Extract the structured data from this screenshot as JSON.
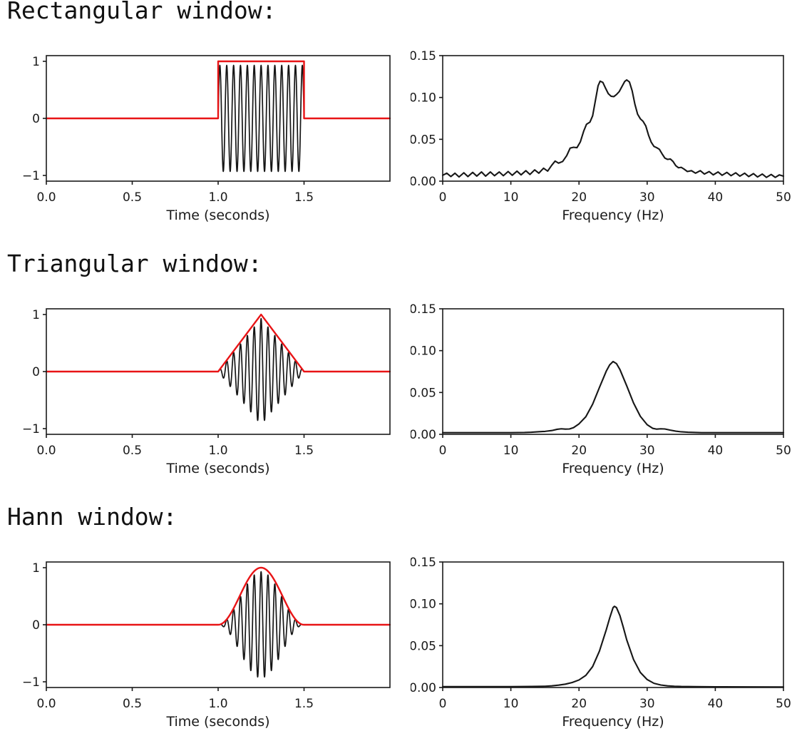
{
  "page": {
    "background": "#ffffff"
  },
  "style": {
    "line_black": "#161616",
    "accent_red": "#e81416",
    "axis_color": "#1a1a1a"
  },
  "sections": [
    {
      "title": "Rectangular window:"
    },
    {
      "title": "Triangular window:"
    },
    {
      "title": "Hann window:"
    }
  ],
  "chart_data": [
    {
      "id": "rectangular-time",
      "type": "line",
      "title": "",
      "xlabel": "Time (seconds)",
      "ylabel": "",
      "xlim": [
        0,
        2
      ],
      "ylim": [
        -1.1,
        1.1
      ],
      "grid": false,
      "legend": null,
      "xticks": {
        "values": [
          0,
          0.5,
          1,
          1.5
        ],
        "labels": [
          "0.0",
          "0.5",
          "1.0",
          "1.5"
        ]
      },
      "yticks": {
        "values": [
          1,
          0,
          -1
        ],
        "labels": [
          "1",
          "0",
          "−1"
        ]
      },
      "series": [
        {
          "name": "windowed-signal",
          "role": "signal",
          "color": "#161616",
          "width": 1.7,
          "carrier_hz": 25,
          "amplitude": 0.93,
          "window": "rectangular",
          "window_start": 1.0,
          "window_end": 1.5,
          "t_range": [
            0,
            2
          ]
        },
        {
          "name": "window-envelope",
          "role": "envelope",
          "color": "#e81416",
          "width": 2.4,
          "window": "rectangular",
          "window_start": 1.0,
          "window_end": 1.5,
          "t_range": [
            0,
            2
          ]
        }
      ]
    },
    {
      "id": "rectangular-spectrum",
      "type": "line",
      "title": "",
      "xlabel": "Frequency (Hz)",
      "ylabel": "",
      "xlim": [
        0,
        50
      ],
      "ylim": [
        0,
        0.15
      ],
      "grid": false,
      "legend": null,
      "xticks": {
        "values": [
          0,
          10,
          20,
          30,
          40,
          50
        ],
        "labels": [
          "0",
          "10",
          "20",
          "30",
          "40",
          "50"
        ]
      },
      "yticks": {
        "values": [
          0,
          0.05,
          0.1,
          0.15
        ],
        "labels": [
          "0.00",
          "0.05",
          "0.10",
          "0.15"
        ]
      },
      "series": [
        {
          "name": "amplitude-spectrum",
          "role": "spectrum",
          "color": "#161616",
          "width": 2.1,
          "peak_hz": [
            23,
            27
          ],
          "peak_value": [
            0.12,
            0.121
          ],
          "points": [
            [
              0,
              0.007
            ],
            [
              0.6,
              0.0095
            ],
            [
              1.2,
              0.0055
            ],
            [
              1.8,
              0.0095
            ],
            [
              2.4,
              0.005
            ],
            [
              3.1,
              0.01
            ],
            [
              3.7,
              0.0055
            ],
            [
              4.4,
              0.0105
            ],
            [
              5.0,
              0.006
            ],
            [
              5.7,
              0.011
            ],
            [
              6.3,
              0.006
            ],
            [
              7.0,
              0.011
            ],
            [
              7.6,
              0.0065
            ],
            [
              8.3,
              0.011
            ],
            [
              8.9,
              0.0065
            ],
            [
              9.6,
              0.0115
            ],
            [
              10.2,
              0.007
            ],
            [
              10.9,
              0.012
            ],
            [
              11.5,
              0.0075
            ],
            [
              12.2,
              0.0125
            ],
            [
              12.8,
              0.008
            ],
            [
              13.5,
              0.0135
            ],
            [
              14.1,
              0.0095
            ],
            [
              14.8,
              0.0155
            ],
            [
              15.4,
              0.012
            ],
            [
              16.0,
              0.019
            ],
            [
              16.5,
              0.024
            ],
            [
              17.0,
              0.0215
            ],
            [
              17.6,
              0.0235
            ],
            [
              18.2,
              0.0305
            ],
            [
              18.7,
              0.0395
            ],
            [
              19.2,
              0.0405
            ],
            [
              19.7,
              0.04
            ],
            [
              20.2,
              0.047
            ],
            [
              20.7,
              0.06
            ],
            [
              21.1,
              0.068
            ],
            [
              21.6,
              0.0705
            ],
            [
              22.0,
              0.078
            ],
            [
              22.4,
              0.096
            ],
            [
              22.8,
              0.114
            ],
            [
              23.1,
              0.1195
            ],
            [
              23.5,
              0.118
            ],
            [
              23.9,
              0.111
            ],
            [
              24.3,
              0.1045
            ],
            [
              24.7,
              0.1015
            ],
            [
              25.1,
              0.101
            ],
            [
              25.5,
              0.1035
            ],
            [
              25.9,
              0.107
            ],
            [
              26.3,
              0.113
            ],
            [
              26.7,
              0.119
            ],
            [
              27.0,
              0.121
            ],
            [
              27.4,
              0.1185
            ],
            [
              27.8,
              0.108
            ],
            [
              28.2,
              0.092
            ],
            [
              28.6,
              0.08
            ],
            [
              29.0,
              0.0745
            ],
            [
              29.4,
              0.0715
            ],
            [
              29.8,
              0.066
            ],
            [
              30.2,
              0.055
            ],
            [
              30.6,
              0.0465
            ],
            [
              31.0,
              0.0415
            ],
            [
              31.4,
              0.04
            ],
            [
              31.8,
              0.038
            ],
            [
              32.2,
              0.0325
            ],
            [
              32.6,
              0.0275
            ],
            [
              33.0,
              0.026
            ],
            [
              33.4,
              0.0265
            ],
            [
              33.8,
              0.0235
            ],
            [
              34.2,
              0.0185
            ],
            [
              34.6,
              0.016
            ],
            [
              35.0,
              0.0165
            ],
            [
              35.4,
              0.0145
            ],
            [
              35.9,
              0.0115
            ],
            [
              36.5,
              0.0125
            ],
            [
              37.1,
              0.0095
            ],
            [
              37.8,
              0.0125
            ],
            [
              38.4,
              0.0085
            ],
            [
              39.1,
              0.0115
            ],
            [
              39.7,
              0.0075
            ],
            [
              40.4,
              0.011
            ],
            [
              41.0,
              0.007
            ],
            [
              41.7,
              0.0105
            ],
            [
              42.3,
              0.0065
            ],
            [
              43.0,
              0.01
            ],
            [
              43.6,
              0.006
            ],
            [
              44.3,
              0.0095
            ],
            [
              44.9,
              0.0055
            ],
            [
              45.6,
              0.009
            ],
            [
              46.2,
              0.005
            ],
            [
              46.9,
              0.0085
            ],
            [
              47.5,
              0.0045
            ],
            [
              48.2,
              0.008
            ],
            [
              48.8,
              0.0045
            ],
            [
              49.4,
              0.0075
            ],
            [
              50,
              0.006
            ]
          ]
        }
      ]
    },
    {
      "id": "triangular-time",
      "type": "line",
      "title": "",
      "xlabel": "Time (seconds)",
      "ylabel": "",
      "xlim": [
        0,
        2
      ],
      "ylim": [
        -1.1,
        1.1
      ],
      "grid": false,
      "legend": null,
      "xticks": {
        "values": [
          0,
          0.5,
          1,
          1.5
        ],
        "labels": [
          "0.0",
          "0.5",
          "1.0",
          "1.5"
        ]
      },
      "yticks": {
        "values": [
          1,
          0,
          -1
        ],
        "labels": [
          "1",
          "0",
          "−1"
        ]
      },
      "series": [
        {
          "name": "windowed-signal",
          "role": "signal",
          "color": "#161616",
          "width": 1.7,
          "carrier_hz": 25,
          "amplitude": 0.93,
          "window": "triangular",
          "window_start": 1.0,
          "window_end": 1.5,
          "t_range": [
            0,
            2
          ]
        },
        {
          "name": "window-envelope",
          "role": "envelope",
          "color": "#e81416",
          "width": 2.4,
          "window": "triangular",
          "window_start": 1.0,
          "window_end": 1.5,
          "t_range": [
            0,
            2
          ]
        }
      ]
    },
    {
      "id": "triangular-spectrum",
      "type": "line",
      "title": "",
      "xlabel": "Frequency (Hz)",
      "ylabel": "",
      "xlim": [
        0,
        50
      ],
      "ylim": [
        0,
        0.15
      ],
      "grid": false,
      "legend": null,
      "xticks": {
        "values": [
          0,
          10,
          20,
          30,
          40,
          50
        ],
        "labels": [
          "0",
          "10",
          "20",
          "30",
          "40",
          "50"
        ]
      },
      "yticks": {
        "values": [
          0,
          0.05,
          0.1,
          0.15
        ],
        "labels": [
          "0.00",
          "0.05",
          "0.10",
          "0.15"
        ]
      },
      "series": [
        {
          "name": "amplitude-spectrum",
          "role": "spectrum",
          "color": "#161616",
          "width": 2.1,
          "peak_hz": [
            25
          ],
          "peak_value": [
            0.087
          ],
          "points": [
            [
              0,
              0.002
            ],
            [
              2,
              0.002
            ],
            [
              4,
              0.002
            ],
            [
              6,
              0.002
            ],
            [
              8,
              0.002
            ],
            [
              10,
              0.002
            ],
            [
              12,
              0.0022
            ],
            [
              13,
              0.0025
            ],
            [
              14,
              0.003
            ],
            [
              15,
              0.0035
            ],
            [
              16,
              0.0045
            ],
            [
              16.8,
              0.006
            ],
            [
              17.4,
              0.0066
            ],
            [
              18.0,
              0.0062
            ],
            [
              18.6,
              0.0064
            ],
            [
              19.2,
              0.008
            ],
            [
              20,
              0.0125
            ],
            [
              21,
              0.021
            ],
            [
              22,
              0.036
            ],
            [
              23,
              0.056
            ],
            [
              24,
              0.0755
            ],
            [
              24.5,
              0.083
            ],
            [
              25,
              0.087
            ],
            [
              25.5,
              0.0845
            ],
            [
              26,
              0.0775
            ],
            [
              27,
              0.058
            ],
            [
              28,
              0.0375
            ],
            [
              29,
              0.0215
            ],
            [
              30,
              0.0115
            ],
            [
              30.8,
              0.0072
            ],
            [
              31.4,
              0.0062
            ],
            [
              32.0,
              0.0066
            ],
            [
              32.6,
              0.0064
            ],
            [
              33.4,
              0.005
            ],
            [
              34.2,
              0.0038
            ],
            [
              35,
              0.003
            ],
            [
              36,
              0.0025
            ],
            [
              38,
              0.002
            ],
            [
              40,
              0.002
            ],
            [
              42,
              0.002
            ],
            [
              44,
              0.002
            ],
            [
              46,
              0.002
            ],
            [
              48,
              0.002
            ],
            [
              50,
              0.002
            ]
          ]
        }
      ]
    },
    {
      "id": "hann-time",
      "type": "line",
      "title": "",
      "xlabel": "Time (seconds)",
      "ylabel": "",
      "xlim": [
        0,
        2
      ],
      "ylim": [
        -1.1,
        1.1
      ],
      "grid": false,
      "legend": null,
      "xticks": {
        "values": [
          0,
          0.5,
          1,
          1.5
        ],
        "labels": [
          "0.0",
          "0.5",
          "1.0",
          "1.5"
        ]
      },
      "yticks": {
        "values": [
          1,
          0,
          -1
        ],
        "labels": [
          "1",
          "0",
          "−1"
        ]
      },
      "series": [
        {
          "name": "windowed-signal",
          "role": "signal",
          "color": "#161616",
          "width": 1.7,
          "carrier_hz": 25,
          "amplitude": 0.93,
          "window": "hann",
          "window_start": 1.0,
          "window_end": 1.5,
          "t_range": [
            0,
            2
          ]
        },
        {
          "name": "window-envelope",
          "role": "envelope",
          "color": "#e81416",
          "width": 2.4,
          "window": "hann",
          "window_start": 1.0,
          "window_end": 1.5,
          "t_range": [
            0,
            2
          ]
        }
      ]
    },
    {
      "id": "hann-spectrum",
      "type": "line",
      "title": "",
      "xlabel": "Frequency (Hz)",
      "ylabel": "",
      "xlim": [
        0,
        50
      ],
      "ylim": [
        0,
        0.15
      ],
      "grid": false,
      "legend": null,
      "xticks": {
        "values": [
          0,
          10,
          20,
          30,
          40,
          50
        ],
        "labels": [
          "0",
          "10",
          "20",
          "30",
          "40",
          "50"
        ]
      },
      "yticks": {
        "values": [
          0,
          0.05,
          0.1,
          0.15
        ],
        "labels": [
          "0.00",
          "0.05",
          "0.10",
          "0.15"
        ]
      },
      "series": [
        {
          "name": "amplitude-spectrum",
          "role": "spectrum",
          "color": "#161616",
          "width": 2.1,
          "peak_hz": [
            25
          ],
          "peak_value": [
            0.097
          ],
          "points": [
            [
              0,
              0.001
            ],
            [
              5,
              0.001
            ],
            [
              10,
              0.001
            ],
            [
              13,
              0.0012
            ],
            [
              15,
              0.0015
            ],
            [
              16,
              0.002
            ],
            [
              17,
              0.0028
            ],
            [
              18,
              0.004
            ],
            [
              19,
              0.006
            ],
            [
              20,
              0.009
            ],
            [
              21,
              0.0145
            ],
            [
              22,
              0.025
            ],
            [
              23,
              0.0435
            ],
            [
              24,
              0.069
            ],
            [
              24.5,
              0.083
            ],
            [
              25,
              0.0955
            ],
            [
              25.2,
              0.097
            ],
            [
              25.5,
              0.0955
            ],
            [
              26,
              0.086
            ],
            [
              26.5,
              0.072
            ],
            [
              27,
              0.057
            ],
            [
              28,
              0.0335
            ],
            [
              29,
              0.018
            ],
            [
              30,
              0.0095
            ],
            [
              31,
              0.005
            ],
            [
              32,
              0.003
            ],
            [
              33,
              0.002
            ],
            [
              34,
              0.0015
            ],
            [
              35,
              0.0012
            ],
            [
              37,
              0.001
            ],
            [
              40,
              0.0008
            ],
            [
              45,
              0.0007
            ],
            [
              50,
              0.0006
            ]
          ]
        }
      ]
    }
  ]
}
